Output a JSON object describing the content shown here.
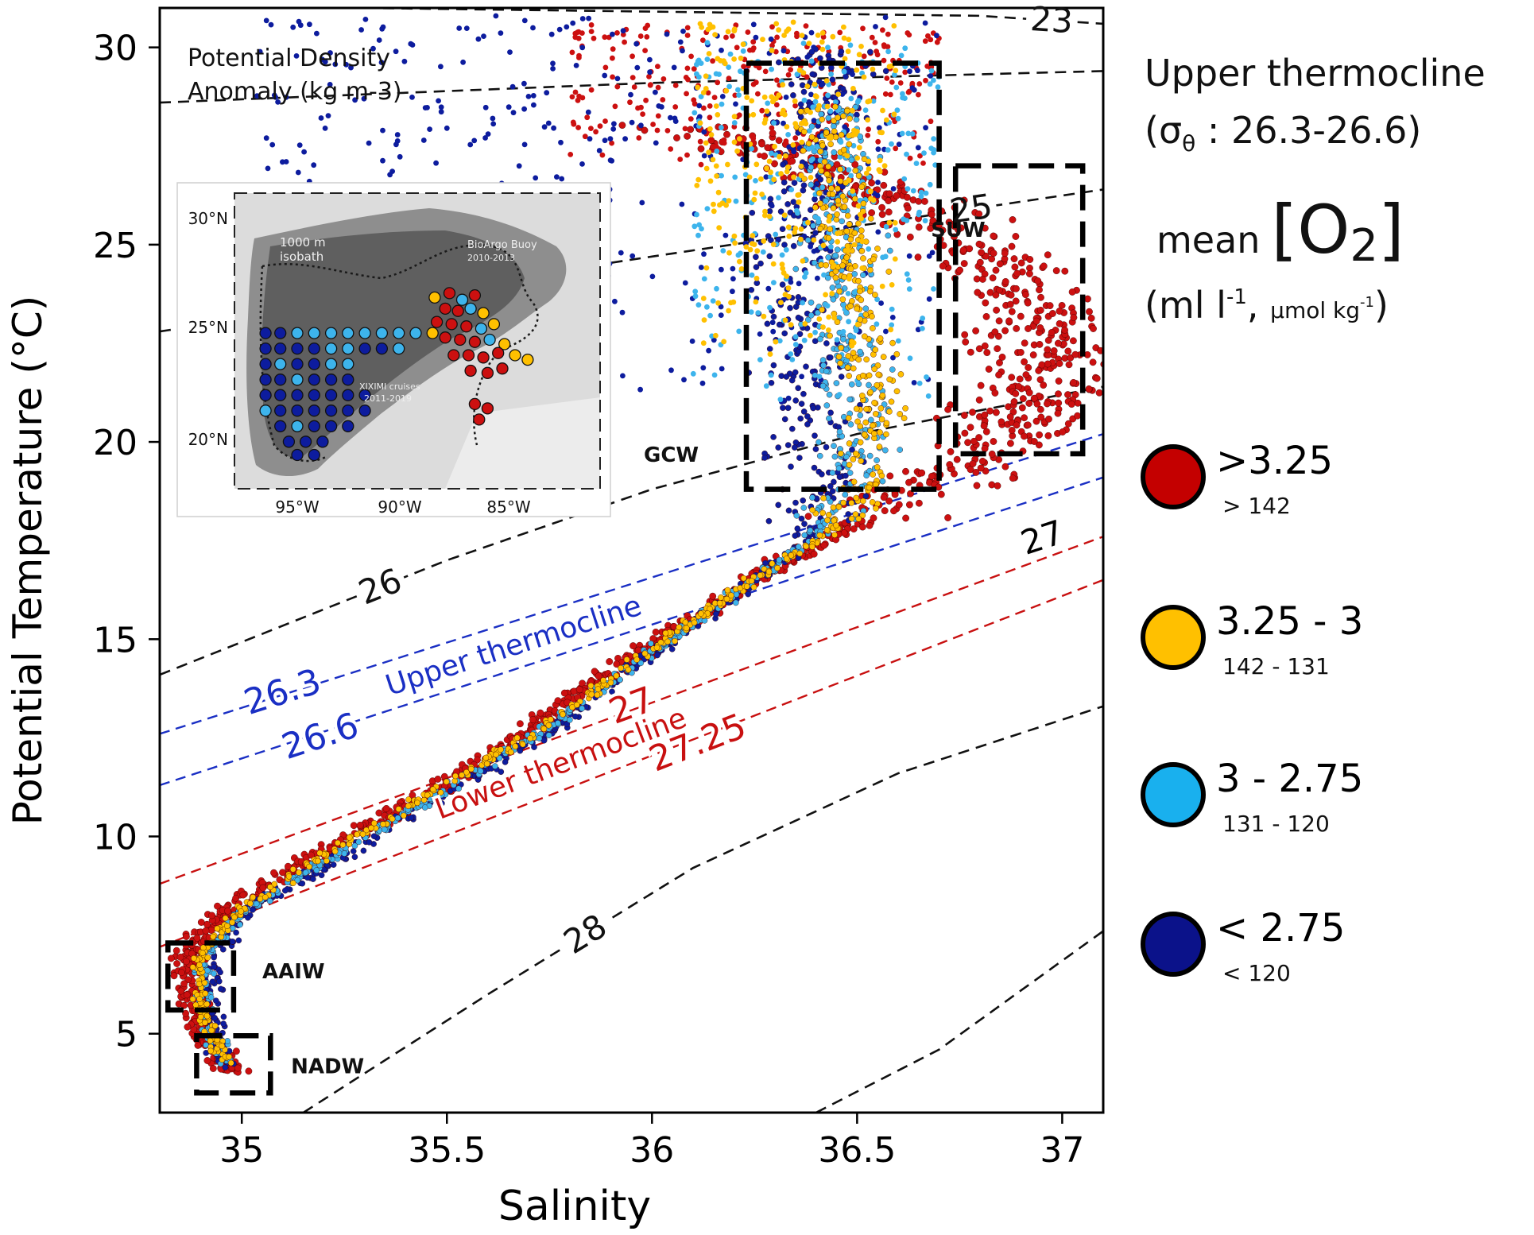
{
  "chart_data": {
    "type": "scatter",
    "title": "",
    "xlabel": "Salinity",
    "ylabel": "Potential Temperature (°C)",
    "xlim": [
      34.8,
      37.1
    ],
    "ylim": [
      3.0,
      31.0
    ],
    "x_ticks": [
      35,
      35.5,
      36,
      36.5,
      37
    ],
    "x_tick_labels": [
      "35",
      "35.5",
      "36",
      "36.5",
      "37"
    ],
    "y_ticks": [
      5,
      10,
      15,
      20,
      25,
      30
    ],
    "y_tick_labels": [
      "5",
      "10",
      "15",
      "20",
      "25",
      "30"
    ],
    "density_note": {
      "line1": "Potential Density",
      "line2": "Anomaly  (kg m-3)"
    },
    "isopycnals": [
      {
        "sigma": 23,
        "label": "23",
        "style": "black",
        "points": [
          [
            35.3,
            31.0
          ],
          [
            36.8,
            30.8
          ],
          [
            37.1,
            30.6
          ]
        ]
      },
      {
        "sigma": 24,
        "label": "",
        "style": "black",
        "points": [
          [
            34.8,
            28.6
          ],
          [
            36.0,
            29.1
          ],
          [
            37.1,
            29.4
          ]
        ]
      },
      {
        "sigma": 25,
        "label": "25",
        "style": "black",
        "points": [
          [
            34.8,
            22.8
          ],
          [
            36.0,
            24.7
          ],
          [
            37.1,
            26.4
          ]
        ]
      },
      {
        "sigma": 26,
        "label": "26",
        "style": "black",
        "points": [
          [
            34.8,
            14.1
          ],
          [
            35.5,
            17.0
          ],
          [
            36.0,
            18.8
          ],
          [
            36.5,
            20.2
          ],
          [
            37.1,
            21.4
          ]
        ]
      },
      {
        "sigma": 28,
        "label": "28",
        "style": "black",
        "points": [
          [
            35.15,
            3.0
          ],
          [
            35.6,
            6.0
          ],
          [
            36.1,
            9.2
          ],
          [
            36.6,
            11.6
          ],
          [
            37.1,
            13.3
          ]
        ]
      },
      {
        "sigma": 28.5,
        "label": "",
        "style": "black",
        "points": [
          [
            36.4,
            3.0
          ],
          [
            36.7,
            4.6
          ],
          [
            37.1,
            7.6
          ]
        ]
      }
    ],
    "thermocline_lines": [
      {
        "sigma": 26.3,
        "label": "26.3",
        "color": "#1a2fc4",
        "points": [
          [
            34.8,
            12.6
          ],
          [
            37.1,
            20.2
          ]
        ]
      },
      {
        "sigma": 26.6,
        "label": "26.6",
        "color": "#1a2fc4",
        "points": [
          [
            34.8,
            11.3
          ],
          [
            37.1,
            19.1
          ]
        ]
      },
      {
        "sigma": 27.0,
        "label": "27",
        "color": "#c81010",
        "points": [
          [
            34.8,
            8.8
          ],
          [
            37.1,
            17.6
          ]
        ]
      },
      {
        "sigma": 27.25,
        "label": "27.25",
        "color": "#c81010",
        "points": [
          [
            34.8,
            7.2
          ],
          [
            37.1,
            16.5
          ]
        ]
      }
    ],
    "right_labels": [
      {
        "text": "27",
        "s": 36.96,
        "t": 17.3,
        "color": "#000000"
      }
    ],
    "layer_labels": [
      {
        "text": "Upper thermocline",
        "color": "#1a2fc4"
      },
      {
        "text": "Lower thermocline",
        "color": "#c81010"
      }
    ],
    "water_masses": [
      {
        "label": "SUW",
        "s": 36.68,
        "t": 25.2,
        "box": {
          "s_min": 36.74,
          "s_max": 37.05,
          "t_min": 19.7,
          "t_max": 27.0
        }
      },
      {
        "label": "GCW",
        "s": 35.98,
        "t": 19.5,
        "box": {
          "s_min": 36.23,
          "s_max": 36.7,
          "t_min": 18.8,
          "t_max": 29.6
        }
      },
      {
        "label": "AAIW",
        "s": 35.05,
        "t": 6.4,
        "box": {
          "s_min": 34.82,
          "s_max": 34.98,
          "t_min": 5.6,
          "t_max": 7.3
        }
      },
      {
        "label": "NADW",
        "s": 35.12,
        "t": 4.0,
        "box": {
          "s_min": 34.89,
          "s_max": 35.07,
          "t_min": 3.5,
          "t_max": 4.95
        }
      }
    ],
    "series": [
      {
        "name": ">3.25",
        "color": "#cc1010",
        "profile": [
          [
            34.98,
            4.0
          ],
          [
            34.9,
            5.0
          ],
          [
            34.86,
            6.5
          ],
          [
            34.9,
            7.6
          ],
          [
            35.03,
            8.6
          ],
          [
            35.2,
            9.6
          ],
          [
            35.45,
            11.0
          ],
          [
            35.7,
            12.7
          ],
          [
            35.95,
            14.5
          ],
          [
            36.2,
            16.2
          ],
          [
            36.45,
            17.7
          ],
          [
            36.68,
            19.0
          ],
          [
            36.85,
            20.2
          ],
          [
            36.93,
            21.5
          ],
          [
            36.96,
            22.8
          ],
          [
            36.9,
            24.0
          ],
          [
            36.75,
            25.3
          ],
          [
            36.55,
            26.3
          ],
          [
            36.35,
            27.2
          ],
          [
            36.1,
            28.0
          ]
        ],
        "surface_s": [
          35.8,
          36.7
        ],
        "surface_t": [
          27.0,
          30.6
        ]
      },
      {
        "name": "3.25 - 3",
        "color": "#ffc000",
        "profile": [
          [
            34.96,
            4.3
          ],
          [
            34.9,
            5.5
          ],
          [
            34.9,
            7.0
          ],
          [
            35.0,
            8.2
          ],
          [
            35.2,
            9.5
          ],
          [
            35.45,
            11.0
          ],
          [
            35.72,
            12.7
          ],
          [
            35.98,
            14.6
          ],
          [
            36.22,
            16.3
          ],
          [
            36.42,
            17.6
          ],
          [
            36.52,
            18.8
          ],
          [
            36.55,
            20.5
          ],
          [
            36.52,
            22.5
          ],
          [
            36.48,
            24.5
          ],
          [
            36.45,
            26.5
          ],
          [
            36.42,
            28.5
          ]
        ],
        "surface_s": [
          36.1,
          36.6
        ],
        "surface_t": [
          22.0,
          30.7
        ]
      },
      {
        "name": "3 - 2.75",
        "color": "#3db4ec",
        "profile": [
          [
            34.96,
            4.2
          ],
          [
            34.91,
            5.5
          ],
          [
            34.91,
            7.0
          ],
          [
            35.01,
            8.2
          ],
          [
            35.22,
            9.5
          ],
          [
            35.47,
            11.0
          ],
          [
            35.74,
            12.7
          ],
          [
            35.99,
            14.6
          ],
          [
            36.22,
            16.3
          ],
          [
            36.4,
            17.6
          ],
          [
            36.48,
            18.8
          ],
          [
            36.5,
            20.5
          ],
          [
            36.47,
            22.5
          ],
          [
            36.45,
            24.5
          ],
          [
            36.45,
            26.5
          ],
          [
            36.45,
            28.5
          ]
        ],
        "surface_s": [
          36.1,
          36.7
        ],
        "surface_t": [
          21.0,
          30.2
        ]
      },
      {
        "name": "< 2.75",
        "color": "#0d1c9e",
        "profile": [
          [
            34.96,
            4.2
          ],
          [
            34.92,
            5.5
          ],
          [
            34.93,
            7.0
          ],
          [
            35.03,
            8.2
          ],
          [
            35.24,
            9.5
          ],
          [
            35.49,
            11.0
          ],
          [
            35.76,
            12.7
          ],
          [
            36.0,
            14.6
          ],
          [
            36.22,
            16.2
          ],
          [
            36.37,
            17.5
          ],
          [
            36.42,
            18.8
          ],
          [
            36.4,
            20.3
          ],
          [
            36.38,
            22.0
          ],
          [
            36.35,
            24.0
          ],
          [
            36.35,
            26.0
          ],
          [
            36.4,
            28.0
          ],
          [
            36.45,
            30.0
          ]
        ],
        "surface_s": [
          35.0,
          36.7
        ],
        "surface_t": [
          20.5,
          30.8
        ]
      }
    ],
    "inset_map": {
      "lat_labels": [
        "30°N",
        "25°N",
        "20°N"
      ],
      "lon_labels": [
        "95°W",
        "90°W",
        "85°W"
      ],
      "annotations": [
        {
          "line1": "1000 m",
          "line2": "isobath"
        },
        {
          "line1": "BioArgo Buoy",
          "line2": "2010-2013"
        },
        {
          "line1": "XIXIMI cruises",
          "line2": "2011-2019"
        }
      ],
      "stations": [
        {
          "lon": -96.5,
          "lat": 24.8,
          "cat": 3
        },
        {
          "lon": -95.8,
          "lat": 24.8,
          "cat": 3
        },
        {
          "lon": -95.0,
          "lat": 24.8,
          "cat": 2
        },
        {
          "lon": -94.2,
          "lat": 24.8,
          "cat": 2
        },
        {
          "lon": -93.4,
          "lat": 24.8,
          "cat": 2
        },
        {
          "lon": -92.6,
          "lat": 24.8,
          "cat": 2
        },
        {
          "lon": -91.8,
          "lat": 24.8,
          "cat": 2
        },
        {
          "lon": -91.0,
          "lat": 24.8,
          "cat": 2
        },
        {
          "lon": -90.2,
          "lat": 24.8,
          "cat": 2
        },
        {
          "lon": -89.4,
          "lat": 24.8,
          "cat": 2
        },
        {
          "lon": -88.6,
          "lat": 24.8,
          "cat": 1
        },
        {
          "lon": -96.5,
          "lat": 24.1,
          "cat": 3
        },
        {
          "lon": -95.8,
          "lat": 24.1,
          "cat": 3
        },
        {
          "lon": -95.0,
          "lat": 24.1,
          "cat": 3
        },
        {
          "lon": -94.2,
          "lat": 24.1,
          "cat": 3
        },
        {
          "lon": -93.4,
          "lat": 24.1,
          "cat": 2
        },
        {
          "lon": -92.6,
          "lat": 24.1,
          "cat": 2
        },
        {
          "lon": -91.8,
          "lat": 24.1,
          "cat": 3
        },
        {
          "lon": -91.0,
          "lat": 24.1,
          "cat": 3
        },
        {
          "lon": -90.2,
          "lat": 24.1,
          "cat": 2
        },
        {
          "lon": -96.5,
          "lat": 23.4,
          "cat": 3
        },
        {
          "lon": -95.8,
          "lat": 23.4,
          "cat": 2
        },
        {
          "lon": -95.0,
          "lat": 23.4,
          "cat": 3
        },
        {
          "lon": -94.2,
          "lat": 23.4,
          "cat": 3
        },
        {
          "lon": -93.4,
          "lat": 23.4,
          "cat": 2
        },
        {
          "lon": -92.6,
          "lat": 23.4,
          "cat": 2
        },
        {
          "lon": -96.5,
          "lat": 22.7,
          "cat": 3
        },
        {
          "lon": -95.8,
          "lat": 22.7,
          "cat": 3
        },
        {
          "lon": -95.0,
          "lat": 22.7,
          "cat": 2
        },
        {
          "lon": -94.2,
          "lat": 22.7,
          "cat": 3
        },
        {
          "lon": -93.4,
          "lat": 22.7,
          "cat": 3
        },
        {
          "lon": -92.6,
          "lat": 22.7,
          "cat": 3
        },
        {
          "lon": -96.5,
          "lat": 22.0,
          "cat": 3
        },
        {
          "lon": -95.8,
          "lat": 22.0,
          "cat": 3
        },
        {
          "lon": -95.0,
          "lat": 22.0,
          "cat": 3
        },
        {
          "lon": -94.2,
          "lat": 22.0,
          "cat": 3
        },
        {
          "lon": -93.4,
          "lat": 22.0,
          "cat": 3
        },
        {
          "lon": -92.6,
          "lat": 22.0,
          "cat": 3
        },
        {
          "lon": -91.8,
          "lat": 22.0,
          "cat": 3
        },
        {
          "lon": -96.5,
          "lat": 21.3,
          "cat": 2
        },
        {
          "lon": -95.8,
          "lat": 21.3,
          "cat": 3
        },
        {
          "lon": -95.0,
          "lat": 21.3,
          "cat": 3
        },
        {
          "lon": -94.2,
          "lat": 21.3,
          "cat": 3
        },
        {
          "lon": -93.4,
          "lat": 21.3,
          "cat": 3
        },
        {
          "lon": -92.6,
          "lat": 21.3,
          "cat": 3
        },
        {
          "lon": -91.8,
          "lat": 21.3,
          "cat": 3
        },
        {
          "lon": -95.8,
          "lat": 20.6,
          "cat": 3
        },
        {
          "lon": -95.0,
          "lat": 20.6,
          "cat": 2
        },
        {
          "lon": -94.2,
          "lat": 20.6,
          "cat": 3
        },
        {
          "lon": -93.4,
          "lat": 20.6,
          "cat": 3
        },
        {
          "lon": -92.6,
          "lat": 20.6,
          "cat": 3
        },
        {
          "lon": -95.4,
          "lat": 19.9,
          "cat": 3
        },
        {
          "lon": -94.6,
          "lat": 19.9,
          "cat": 3
        },
        {
          "lon": -93.8,
          "lat": 19.9,
          "cat": 3
        },
        {
          "lon": -95.0,
          "lat": 19.3,
          "cat": 3
        },
        {
          "lon": -94.2,
          "lat": 19.3,
          "cat": 3
        },
        {
          "lon": -88.5,
          "lat": 26.4,
          "cat": 1
        },
        {
          "lon": -87.8,
          "lat": 26.6,
          "cat": 0
        },
        {
          "lon": -87.2,
          "lat": 26.3,
          "cat": 2
        },
        {
          "lon": -86.6,
          "lat": 26.5,
          "cat": 0
        },
        {
          "lon": -88.0,
          "lat": 25.9,
          "cat": 0
        },
        {
          "lon": -87.4,
          "lat": 25.8,
          "cat": 0
        },
        {
          "lon": -86.8,
          "lat": 25.9,
          "cat": 2
        },
        {
          "lon": -86.2,
          "lat": 25.7,
          "cat": 1
        },
        {
          "lon": -88.4,
          "lat": 25.3,
          "cat": 0
        },
        {
          "lon": -87.7,
          "lat": 25.2,
          "cat": 0
        },
        {
          "lon": -87.0,
          "lat": 25.1,
          "cat": 0
        },
        {
          "lon": -86.3,
          "lat": 25.0,
          "cat": 2
        },
        {
          "lon": -85.7,
          "lat": 25.2,
          "cat": 1
        },
        {
          "lon": -88.0,
          "lat": 24.6,
          "cat": 0
        },
        {
          "lon": -87.3,
          "lat": 24.5,
          "cat": 0
        },
        {
          "lon": -86.6,
          "lat": 24.4,
          "cat": 0
        },
        {
          "lon": -85.9,
          "lat": 24.5,
          "cat": 2
        },
        {
          "lon": -85.2,
          "lat": 24.3,
          "cat": 1
        },
        {
          "lon": -87.6,
          "lat": 23.8,
          "cat": 0
        },
        {
          "lon": -86.9,
          "lat": 23.8,
          "cat": 0
        },
        {
          "lon": -86.2,
          "lat": 23.7,
          "cat": 0
        },
        {
          "lon": -85.5,
          "lat": 23.9,
          "cat": 0
        },
        {
          "lon": -84.7,
          "lat": 23.8,
          "cat": 1
        },
        {
          "lon": -84.1,
          "lat": 23.6,
          "cat": 1
        },
        {
          "lon": -86.8,
          "lat": 23.1,
          "cat": 0
        },
        {
          "lon": -86.0,
          "lat": 23.0,
          "cat": 0
        },
        {
          "lon": -85.3,
          "lat": 23.2,
          "cat": 0
        },
        {
          "lon": -86.6,
          "lat": 21.6,
          "cat": 0
        },
        {
          "lon": -86.0,
          "lat": 21.4,
          "cat": 0
        },
        {
          "lon": -86.4,
          "lat": 20.9,
          "cat": 0
        }
      ]
    }
  },
  "legend": {
    "title_line1": "Upper thermocline",
    "title_line2_open": "(σ",
    "title_line2_sub": "θ",
    "title_line2_rest": " : 26.3-26.6)",
    "mean_word": "mean",
    "o2_open": "[O",
    "o2_sub": "2",
    "o2_close": "]",
    "units_open": "(ml l",
    "units_sup": "-1",
    "units_mid": ", ",
    "units_small": "μmol kg",
    "units_sup2": "-1",
    "units_close": ")",
    "items": [
      {
        "main": ">3.25",
        "sub": "> 142",
        "color": "#c40000"
      },
      {
        "main": "3.25 - 3",
        "sub": "142 - 131",
        "color": "#ffc000"
      },
      {
        "main": "3 - 2.75",
        "sub": "131 - 120",
        "color": "#19b0ee"
      },
      {
        "main": "< 2.75",
        "sub": "< 120",
        "color": "#0b128a"
      }
    ]
  }
}
